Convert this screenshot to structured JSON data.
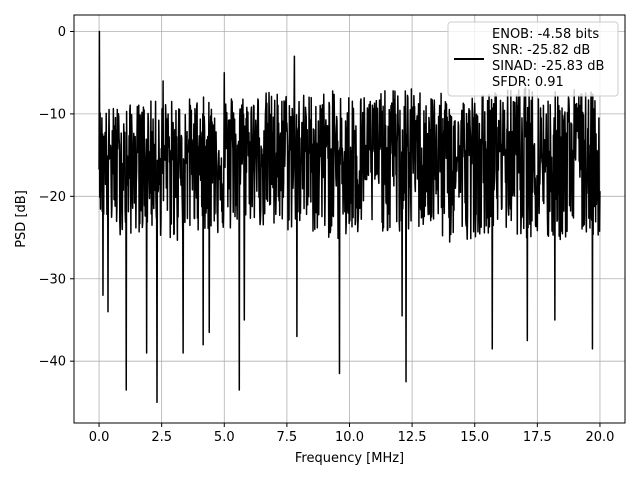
{
  "chart_data": {
    "type": "line",
    "title": "",
    "xlabel": "Frequency [MHz]",
    "ylabel": "PSD [dB]",
    "xlim": [
      -1.0,
      21.0
    ],
    "ylim": [
      -47.5,
      2.0
    ],
    "xticks": [
      0.0,
      2.5,
      5.0,
      7.5,
      10.0,
      12.5,
      15.0,
      17.5,
      20.0
    ],
    "xtick_labels": [
      "0.0",
      "2.5",
      "5.0",
      "7.5",
      "10.0",
      "12.5",
      "15.0",
      "17.5",
      "20.0"
    ],
    "yticks": [
      0,
      -10,
      -20,
      -30,
      -40
    ],
    "ytick_labels": [
      "0",
      "−10",
      "−20",
      "−30",
      "−40"
    ],
    "grid": true,
    "legend_position": "top-right",
    "colors": {
      "line": "#000000",
      "grid": "#b0b0b0"
    },
    "series": [
      {
        "name": "ENOB: -4.58 bits\nSNR: -25.82 dB\nSINAD: -25.83 dB\nSFDR: 0.91",
        "legend_lines": [
          "ENOB: -4.58 bits",
          "SNR: -25.82 dB",
          "SINAD: -25.83 dB",
          "SFDR: 0.91"
        ],
        "x_range": [
          0.0,
          20.0
        ],
        "upper_envelope": [
          -8,
          -7.5,
          -7,
          -6.5,
          -6.5,
          -6,
          -6,
          -5.5,
          -6,
          -5.5,
          -5.5,
          -6,
          -5,
          -5.5,
          -6,
          -6,
          -5.5,
          -5,
          -5.5,
          -5,
          -6
        ],
        "lower_envelope": [
          -23,
          -25,
          -24,
          -26,
          -24,
          -25,
          -23,
          -25,
          -24,
          -25,
          -26,
          -24,
          -25,
          -24,
          -26,
          -25,
          -24,
          -25,
          -26,
          -25,
          -25
        ],
        "peaks": [
          {
            "x": 0.02,
            "y": 0.0
          },
          {
            "x": 0.1,
            "y": -14.0
          },
          {
            "x": 2.55,
            "y": -6.0
          },
          {
            "x": 5.0,
            "y": -5.0
          },
          {
            "x": 7.8,
            "y": -3.0
          }
        ],
        "dips": [
          {
            "x": 0.15,
            "y": -32.0
          },
          {
            "x": 0.35,
            "y": -34.0
          },
          {
            "x": 1.08,
            "y": -43.5
          },
          {
            "x": 1.9,
            "y": -39.0
          },
          {
            "x": 2.32,
            "y": -45.0
          },
          {
            "x": 3.35,
            "y": -39.0
          },
          {
            "x": 4.15,
            "y": -38.0
          },
          {
            "x": 4.4,
            "y": -36.5
          },
          {
            "x": 5.6,
            "y": -43.5
          },
          {
            "x": 5.8,
            "y": -35.0
          },
          {
            "x": 7.9,
            "y": -37.0
          },
          {
            "x": 9.6,
            "y": -41.5
          },
          {
            "x": 12.25,
            "y": -42.5
          },
          {
            "x": 12.1,
            "y": -34.5
          },
          {
            "x": 15.7,
            "y": -38.5
          },
          {
            "x": 17.1,
            "y": -37.5
          },
          {
            "x": 18.2,
            "y": -35.0
          },
          {
            "x": 19.7,
            "y": -38.5
          }
        ]
      }
    ]
  }
}
